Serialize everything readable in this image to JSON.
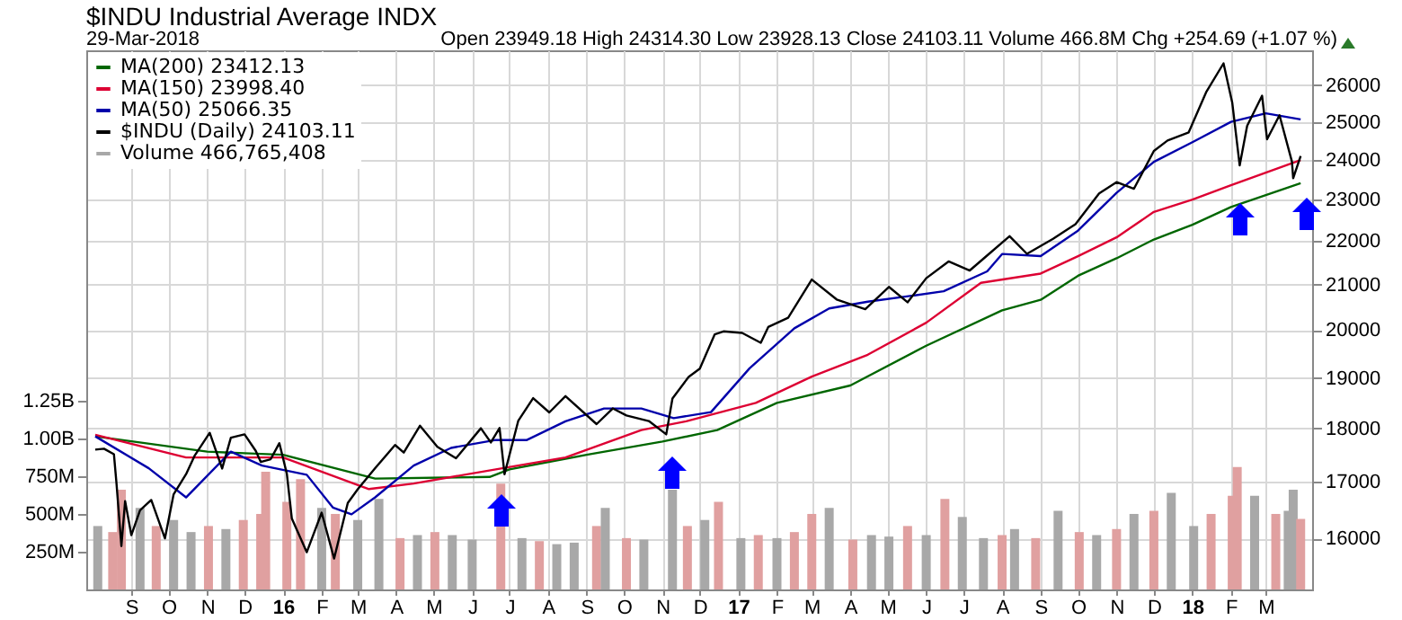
{
  "chart_data": {
    "type": "line",
    "title": "$INDU Industrial Average INDX",
    "subtitle": "29-Mar-2018",
    "annotations": [
      "Open 23949.18 High 24314.30 Low 23928.13 Close 24103.11 Volume 466.8M Chg +254.69 (+1.07 %)"
    ],
    "xlim": [
      "2015-08-03",
      "2018-03-31"
    ],
    "xticks": [
      {
        "value": "2015-09-01",
        "label": "S"
      },
      {
        "value": "2015-10-01",
        "label": "O"
      },
      {
        "value": "2015-11-01",
        "label": "N"
      },
      {
        "value": "2015-12-01",
        "label": "D"
      },
      {
        "value": "2016-01-01",
        "label": "16"
      },
      {
        "value": "2016-02-01",
        "label": "F"
      },
      {
        "value": "2016-03-01",
        "label": "M"
      },
      {
        "value": "2016-04-01",
        "label": "A"
      },
      {
        "value": "2016-05-01",
        "label": "M"
      },
      {
        "value": "2016-06-01",
        "label": "J"
      },
      {
        "value": "2016-07-01",
        "label": "J"
      },
      {
        "value": "2016-08-01",
        "label": "A"
      },
      {
        "value": "2016-09-01",
        "label": "S"
      },
      {
        "value": "2016-10-01",
        "label": "O"
      },
      {
        "value": "2016-11-01",
        "label": "N"
      },
      {
        "value": "2016-12-01",
        "label": "D"
      },
      {
        "value": "2017-01-01",
        "label": "17"
      },
      {
        "value": "2017-02-01",
        "label": "F"
      },
      {
        "value": "2017-03-01",
        "label": "M"
      },
      {
        "value": "2017-04-01",
        "label": "A"
      },
      {
        "value": "2017-05-01",
        "label": "M"
      },
      {
        "value": "2017-06-01",
        "label": "J"
      },
      {
        "value": "2017-07-01",
        "label": "J"
      },
      {
        "value": "2017-08-01",
        "label": "A"
      },
      {
        "value": "2017-09-01",
        "label": "S"
      },
      {
        "value": "2017-10-01",
        "label": "O"
      },
      {
        "value": "2017-11-01",
        "label": "N"
      },
      {
        "value": "2017-12-01",
        "label": "D"
      },
      {
        "value": "2018-01-01",
        "label": "18"
      },
      {
        "value": "2018-02-01",
        "label": "F"
      },
      {
        "value": "2018-03-01",
        "label": "M"
      }
    ],
    "y2lim": [
      15150,
      26990
    ],
    "y2ticks": [
      16000,
      17000,
      18000,
      19000,
      20000,
      21000,
      22000,
      23000,
      24000,
      25000,
      26000
    ],
    "log": "y2",
    "ylim": [
      0,
      3570000000
    ],
    "yticks": [
      {
        "value": 250000000,
        "label": "250M"
      },
      {
        "value": 500000000,
        "label": "500M"
      },
      {
        "value": 750000000,
        "label": "750M"
      },
      {
        "value": 1000000000,
        "label": "1.00B"
      },
      {
        "value": 1250000000,
        "label": "1.25B"
      }
    ],
    "grid": true,
    "legend": "top left",
    "series": [
      {
        "name": "MA(200) 23412.13",
        "axis": "y2",
        "color": "#006600",
        "x": [
          "2015-08-03",
          "2015-11-01",
          "2016-01-01",
          "2016-03-15",
          "2016-06-15",
          "2016-07-01",
          "2016-09-01",
          "2016-11-01",
          "2016-12-15",
          "2017-02-01",
          "2017-04-01",
          "2017-06-01",
          "2017-08-01",
          "2017-09-01",
          "2017-10-01",
          "2017-11-01",
          "2017-12-01",
          "2018-01-01",
          "2018-02-01",
          "2018-03-29"
        ],
        "values": [
          17850,
          17560,
          17500,
          17060,
          17090,
          17230,
          17500,
          17750,
          17970,
          18500,
          18850,
          19670,
          20430,
          20660,
          21200,
          21600,
          22040,
          22390,
          22820,
          23412
        ]
      },
      {
        "name": "MA(150) 23998.40",
        "axis": "y2",
        "color": "#dd0033",
        "x": [
          "2015-08-03",
          "2015-10-15",
          "2016-01-01",
          "2016-03-10",
          "2016-04-15",
          "2016-06-20",
          "2016-08-15",
          "2016-10-15",
          "2016-11-20",
          "2017-01-15",
          "2017-03-01",
          "2017-04-15",
          "2017-06-01",
          "2017-07-15",
          "2017-09-01",
          "2017-10-01",
          "2017-11-01",
          "2017-12-01",
          "2018-01-01",
          "2018-02-01",
          "2018-03-29"
        ],
        "values": [
          17880,
          17450,
          17450,
          16870,
          16970,
          17230,
          17450,
          17970,
          18140,
          18500,
          19030,
          19480,
          20160,
          21040,
          21250,
          21650,
          22090,
          22700,
          23000,
          23360,
          23998
        ]
      },
      {
        "name": "MA(50) 25066.35",
        "axis": "y2",
        "color": "#0000aa",
        "x": [
          "2015-08-03",
          "2015-09-15",
          "2015-10-15",
          "2015-11-20",
          "2015-12-15",
          "2016-01-20",
          "2016-02-10",
          "2016-02-25",
          "2016-03-15",
          "2016-04-15",
          "2016-05-15",
          "2016-06-20",
          "2016-07-15",
          "2016-08-15",
          "2016-09-15",
          "2016-10-15",
          "2016-11-10",
          "2016-12-10",
          "2017-01-10",
          "2017-02-15",
          "2017-03-15",
          "2017-04-15",
          "2017-05-15",
          "2017-06-15",
          "2017-07-20",
          "2017-08-01",
          "2017-09-01",
          "2017-10-01",
          "2017-11-01",
          "2017-12-01",
          "2018-01-01",
          "2018-02-01",
          "2018-03-01",
          "2018-03-29"
        ],
        "values": [
          17850,
          17250,
          16720,
          17560,
          17300,
          17130,
          16540,
          16420,
          16720,
          17300,
          17630,
          17780,
          17780,
          18140,
          18390,
          18390,
          18200,
          18320,
          19200,
          20040,
          20470,
          20620,
          20730,
          20850,
          21300,
          21700,
          21650,
          22250,
          23170,
          23950,
          24460,
          25000,
          25230,
          25066
        ]
      },
      {
        "name": "$INDU (Daily) 24103.11",
        "axis": "y2",
        "color": "#000000",
        "x": [
          "2015-08-03",
          "2015-08-10",
          "2015-08-18",
          "2015-08-20",
          "2015-08-24",
          "2015-08-27",
          "2015-09-01",
          "2015-09-08",
          "2015-09-17",
          "2015-09-28",
          "2015-10-05",
          "2015-10-15",
          "2015-10-22",
          "2015-11-03",
          "2015-11-13",
          "2015-11-20",
          "2015-12-01",
          "2015-12-10",
          "2015-12-14",
          "2015-12-22",
          "2015-12-29",
          "2016-01-04",
          "2016-01-08",
          "2016-01-20",
          "2016-02-01",
          "2016-02-11",
          "2016-02-22",
          "2016-03-01",
          "2016-03-15",
          "2016-03-31",
          "2016-04-07",
          "2016-04-20",
          "2016-05-04",
          "2016-05-19",
          "2016-06-08",
          "2016-06-16",
          "2016-06-23",
          "2016-06-27",
          "2016-07-08",
          "2016-07-20",
          "2016-08-02",
          "2016-08-15",
          "2016-09-09",
          "2016-09-22",
          "2016-10-03",
          "2016-10-21",
          "2016-11-04",
          "2016-11-09",
          "2016-11-22",
          "2016-12-01",
          "2016-12-13",
          "2016-12-20",
          "2017-01-04",
          "2017-01-19",
          "2017-01-25",
          "2017-02-10",
          "2017-03-01",
          "2017-03-21",
          "2017-04-13",
          "2017-05-02",
          "2017-05-17",
          "2017-06-01",
          "2017-06-19",
          "2017-07-06",
          "2017-07-19",
          "2017-08-07",
          "2017-08-21",
          "2017-09-11",
          "2017-09-29",
          "2017-10-18",
          "2017-11-01",
          "2017-11-15",
          "2017-12-01",
          "2017-12-12",
          "2017-12-29",
          "2018-01-12",
          "2018-01-26",
          "2018-02-02",
          "2018-02-08",
          "2018-02-14",
          "2018-02-26",
          "2018-03-02",
          "2018-03-12",
          "2018-03-22",
          "2018-03-23",
          "2018-03-29"
        ],
        "values": [
          17598,
          17615,
          17512,
          16990,
          15871,
          16655,
          16058,
          16492,
          16674,
          16001,
          16776,
          17142,
          17489,
          17918,
          17245,
          17823,
          17888,
          17574,
          17368,
          17418,
          17720,
          17149,
          16347,
          15766,
          16449,
          15660,
          16620,
          16865,
          17251,
          17685,
          17542,
          18053,
          17651,
          17435,
          18005,
          17733,
          18011,
          17140,
          18147,
          18595,
          18313,
          18636,
          18085,
          18392,
          18253,
          18145,
          17888,
          18589,
          19023,
          19192,
          19911,
          19974,
          19942,
          19732,
          20068,
          20269,
          21115,
          20668,
          20453,
          20949,
          20606,
          21144,
          21528,
          21320,
          21641,
          22118,
          21703,
          22057,
          22405,
          23157,
          23435,
          23271,
          24231,
          24504,
          24719,
          25803,
          26616,
          25520,
          23860,
          24893,
          25709,
          24538,
          25178,
          23957,
          23533,
          24103
        ]
      },
      {
        "name": "Volume 466,765,408",
        "type": "bar",
        "color": "#a8a8a8",
        "x": [
          "2015-08-05",
          "2015-08-17",
          "2015-08-24",
          "2015-09-08",
          "2015-09-21",
          "2015-10-05",
          "2015-10-19",
          "2015-11-02",
          "2015-11-16",
          "2015-11-30",
          "2015-12-14",
          "2015-12-18",
          "2016-01-04",
          "2016-01-15",
          "2016-02-01",
          "2016-02-12",
          "2016-03-01",
          "2016-03-18",
          "2016-04-04",
          "2016-04-18",
          "2016-05-02",
          "2016-05-16",
          "2016-06-01",
          "2016-06-24",
          "2016-07-11",
          "2016-07-25",
          "2016-08-08",
          "2016-08-22",
          "2016-09-09",
          "2016-09-16",
          "2016-10-03",
          "2016-10-17",
          "2016-11-09",
          "2016-11-21",
          "2016-12-05",
          "2016-12-16",
          "2017-01-03",
          "2017-01-17",
          "2017-02-01",
          "2017-02-15",
          "2017-03-01",
          "2017-03-15",
          "2017-04-03",
          "2017-04-18",
          "2017-05-02",
          "2017-05-17",
          "2017-06-01",
          "2017-06-16",
          "2017-06-30",
          "2017-07-17",
          "2017-08-01",
          "2017-08-11",
          "2017-08-28",
          "2017-09-15",
          "2017-10-02",
          "2017-10-16",
          "2017-11-01",
          "2017-11-15",
          "2017-12-01",
          "2017-12-15",
          "2018-01-02",
          "2018-01-16",
          "2018-02-02",
          "2018-02-06",
          "2018-02-20",
          "2018-03-09",
          "2018-03-19",
          "2018-03-23",
          "2018-03-29"
        ],
        "values": [
          420000000,
          380000000,
          660000000,
          540000000,
          420000000,
          460000000,
          380000000,
          420000000,
          400000000,
          460000000,
          500000000,
          780000000,
          580000000,
          730000000,
          540000000,
          500000000,
          460000000,
          600000000,
          340000000,
          360000000,
          380000000,
          360000000,
          330000000,
          700000000,
          340000000,
          320000000,
          300000000,
          310000000,
          420000000,
          540000000,
          340000000,
          330000000,
          660000000,
          420000000,
          460000000,
          580000000,
          340000000,
          360000000,
          340000000,
          380000000,
          500000000,
          540000000,
          330000000,
          360000000,
          350000000,
          420000000,
          360000000,
          600000000,
          480000000,
          340000000,
          360000000,
          400000000,
          340000000,
          520000000,
          380000000,
          360000000,
          400000000,
          500000000,
          520000000,
          640000000,
          420000000,
          500000000,
          620000000,
          810000000,
          620000000,
          500000000,
          520000000,
          660000000,
          467000000
        ],
        "colors": [
          "#a8a8a8",
          "#e0a0a0",
          "#e0a0a0",
          "#a8a8a8",
          "#e0a0a0",
          "#a8a8a8",
          "#a8a8a8",
          "#e0a0a0",
          "#a8a8a8",
          "#e0a0a0",
          "#e0a0a0",
          "#e0a0a0",
          "#e0a0a0",
          "#e0a0a0",
          "#a8a8a8",
          "#e0a0a0",
          "#a8a8a8",
          "#a8a8a8",
          "#e0a0a0",
          "#a8a8a8",
          "#e0a0a0",
          "#a8a8a8",
          "#a8a8a8",
          "#e0a0a0",
          "#a8a8a8",
          "#e0a0a0",
          "#a8a8a8",
          "#a8a8a8",
          "#e0a0a0",
          "#a8a8a8",
          "#e0a0a0",
          "#a8a8a8",
          "#a8a8a8",
          "#e0a0a0",
          "#a8a8a8",
          "#e0a0a0",
          "#a8a8a8",
          "#e0a0a0",
          "#a8a8a8",
          "#e0a0a0",
          "#e0a0a0",
          "#a8a8a8",
          "#e0a0a0",
          "#a8a8a8",
          "#a8a8a8",
          "#e0a0a0",
          "#a8a8a8",
          "#e0a0a0",
          "#a8a8a8",
          "#a8a8a8",
          "#e0a0a0",
          "#a8a8a8",
          "#e0a0a0",
          "#a8a8a8",
          "#e0a0a0",
          "#a8a8a8",
          "#e0a0a0",
          "#a8a8a8",
          "#e0a0a0",
          "#a8a8a8",
          "#a8a8a8",
          "#e0a0a0",
          "#e0a0a0",
          "#e0a0a0",
          "#a8a8a8",
          "#e0a0a0",
          "#a8a8a8",
          "#a8a8a8",
          "#e0a0a0"
        ]
      }
    ]
  }
}
